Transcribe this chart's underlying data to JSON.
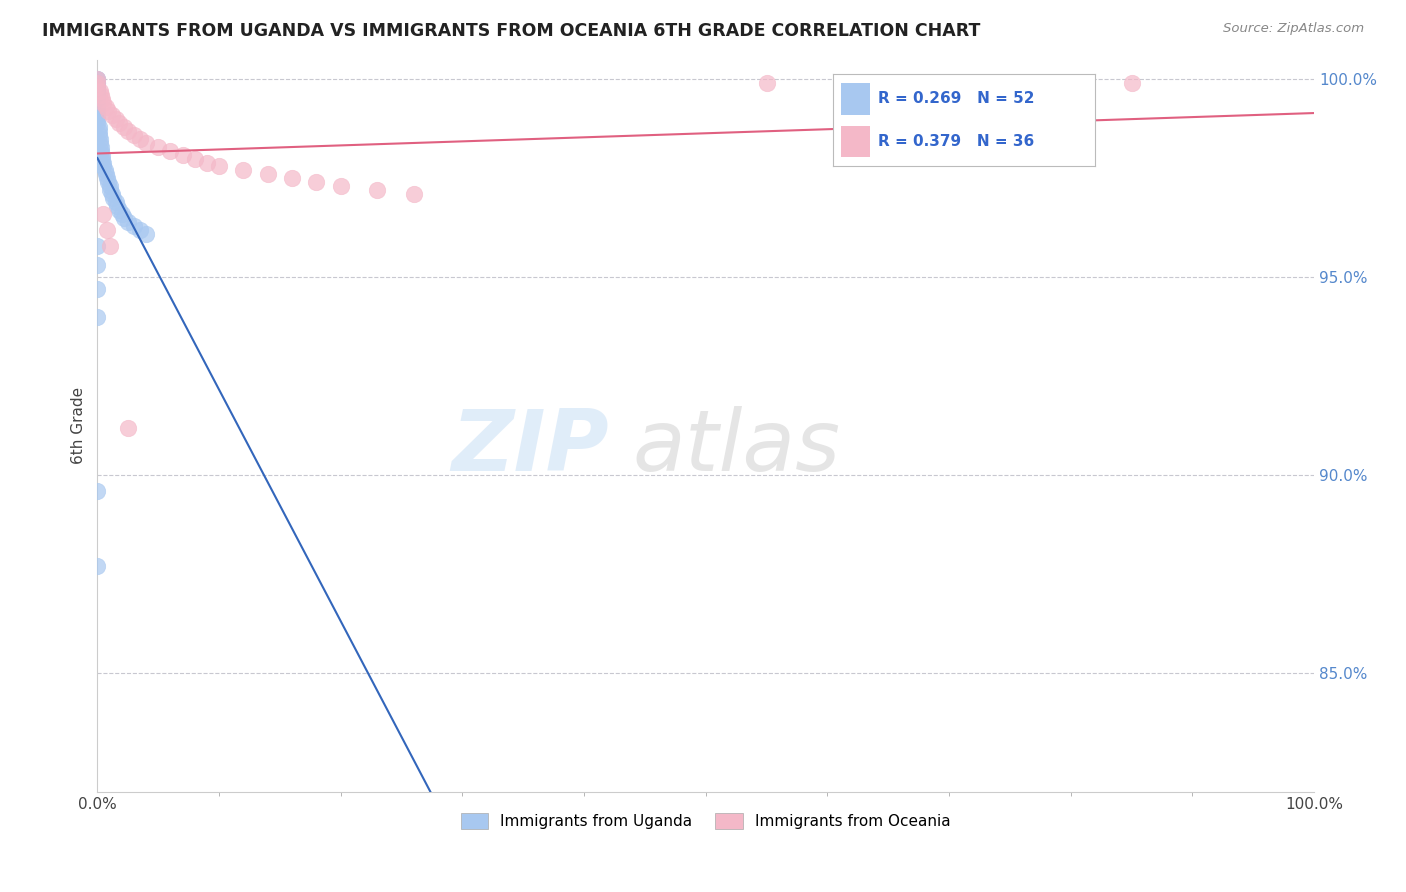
{
  "title": "IMMIGRANTS FROM UGANDA VS IMMIGRANTS FROM OCEANIA 6TH GRADE CORRELATION CHART",
  "source": "Source: ZipAtlas.com",
  "ylabel": "6th Grade",
  "legend_r_uganda": "R = 0.269",
  "legend_n_uganda": "N = 52",
  "legend_r_oceania": "R = 0.379",
  "legend_n_oceania": "N = 36",
  "legend_label_uganda": "Immigrants from Uganda",
  "legend_label_oceania": "Immigrants from Oceania",
  "color_uganda": "#a8c8f0",
  "color_oceania": "#f4b8c8",
  "trendline_uganda_color": "#3366bb",
  "trendline_oceania_color": "#e06080",
  "xmin": 0.0,
  "xmax": 1.0,
  "ymin": 0.82,
  "ymax": 1.005,
  "yticks": [
    0.85,
    0.9,
    0.95,
    1.0
  ],
  "ytick_labels": [
    "85.0%",
    "90.0%",
    "95.0%",
    "100.0%"
  ],
  "uganda_x": [
    0.0,
    0.0,
    0.0,
    0.0,
    0.0,
    0.0,
    0.0,
    0.0,
    0.0,
    0.0,
    0.0,
    0.0,
    0.0,
    0.0,
    0.0,
    0.0,
    0.0,
    0.0,
    0.001,
    0.001,
    0.001,
    0.002,
    0.002,
    0.003,
    0.003,
    0.004,
    0.004,
    0.005,
    0.005,
    0.006,
    0.007,
    0.008,
    0.009,
    0.01,
    0.01,
    0.012,
    0.013,
    0.015,
    0.016,
    0.018,
    0.02,
    0.022,
    0.025,
    0.03,
    0.035,
    0.04,
    0.0,
    0.0,
    0.0,
    0.0,
    0.0,
    0.0
  ],
  "uganda_y": [
    1.0,
    1.0,
    0.999,
    0.999,
    0.998,
    0.998,
    0.997,
    0.997,
    0.996,
    0.996,
    0.995,
    0.995,
    0.994,
    0.993,
    0.992,
    0.991,
    0.99,
    0.989,
    0.988,
    0.987,
    0.986,
    0.985,
    0.984,
    0.983,
    0.982,
    0.981,
    0.98,
    0.979,
    0.978,
    0.977,
    0.976,
    0.975,
    0.974,
    0.973,
    0.972,
    0.971,
    0.97,
    0.969,
    0.968,
    0.967,
    0.966,
    0.965,
    0.964,
    0.963,
    0.962,
    0.961,
    0.958,
    0.953,
    0.947,
    0.94,
    0.896,
    0.877
  ],
  "oceania_x": [
    0.0,
    0.0,
    0.0,
    0.002,
    0.003,
    0.004,
    0.005,
    0.007,
    0.009,
    0.012,
    0.015,
    0.018,
    0.022,
    0.025,
    0.03,
    0.035,
    0.04,
    0.05,
    0.06,
    0.07,
    0.08,
    0.09,
    0.1,
    0.12,
    0.14,
    0.16,
    0.18,
    0.2,
    0.23,
    0.26,
    0.005,
    0.008,
    0.01,
    0.55,
    0.85,
    0.025
  ],
  "oceania_y": [
    1.0,
    0.999,
    0.998,
    0.997,
    0.996,
    0.995,
    0.994,
    0.993,
    0.992,
    0.991,
    0.99,
    0.989,
    0.988,
    0.987,
    0.986,
    0.985,
    0.984,
    0.983,
    0.982,
    0.981,
    0.98,
    0.979,
    0.978,
    0.977,
    0.976,
    0.975,
    0.974,
    0.973,
    0.972,
    0.971,
    0.966,
    0.962,
    0.958,
    0.999,
    0.999,
    0.912
  ]
}
